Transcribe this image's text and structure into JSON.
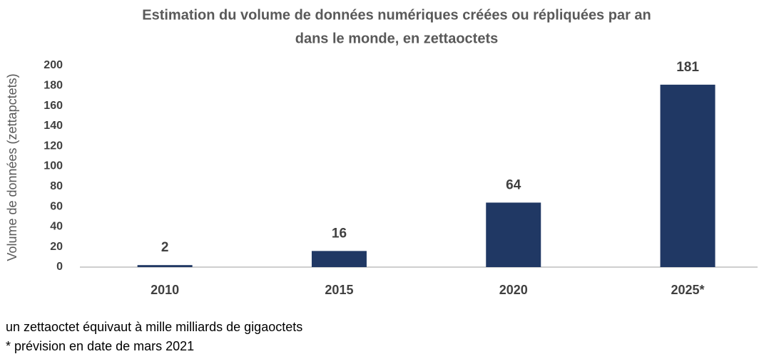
{
  "chart_data": {
    "type": "bar",
    "title": [
      "Estimation du volume de données numériques créées ou répliquées par an",
      "dans le monde, en zettaoctets"
    ],
    "ylabel": "Volume de données (zettapctets)",
    "categories": [
      "2010",
      "2015",
      "2020",
      "2025*"
    ],
    "values": [
      2,
      16,
      64,
      181
    ],
    "color": "#203864",
    "ylim": [
      0,
      200
    ],
    "yticks": [
      0,
      20,
      40,
      60,
      80,
      100,
      120,
      140,
      160,
      180,
      200
    ],
    "grid": false,
    "notes": [
      "un zettaoctet équivaut à mille milliards de gigaoctets",
      "* prévision en date de mars 2021"
    ]
  }
}
